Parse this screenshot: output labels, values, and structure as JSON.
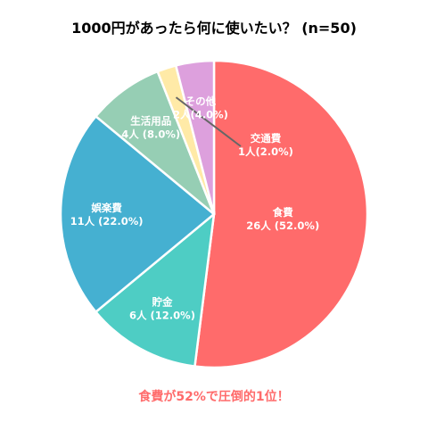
{
  "chart_data": {
    "type": "pie",
    "title": "1000円があったら何に使いたい？ (n=50)",
    "slices": [
      {
        "label": "食費",
        "count": 26,
        "percent": 52.0,
        "color": "#ff6b6b",
        "value_text": "26人 (52.0%)"
      },
      {
        "label": "貯金",
        "count": 6,
        "percent": 12.0,
        "color": "#4ecdc4",
        "value_text": "6人 (12.0%)"
      },
      {
        "label": "娯楽費",
        "count": 11,
        "percent": 22.0,
        "color": "#45b0d1",
        "value_text": "11人 (22.0%)"
      },
      {
        "label": "生活用品",
        "count": 4,
        "percent": 8.0,
        "color": "#96ceb4",
        "value_text": "4人 (8.0%)"
      },
      {
        "label": "交通費",
        "count": 1,
        "percent": 2.0,
        "color": "#ffeaa7",
        "value_text": "1人(2.0%)"
      },
      {
        "label": "その他",
        "count": 2,
        "percent": 4.0,
        "color": "#dda0dd",
        "value_text": "2人(4.0%)"
      }
    ],
    "start": "12 o'clock",
    "direction": "clockwise",
    "footnote": "食費が52%で圧倒的1位！"
  }
}
